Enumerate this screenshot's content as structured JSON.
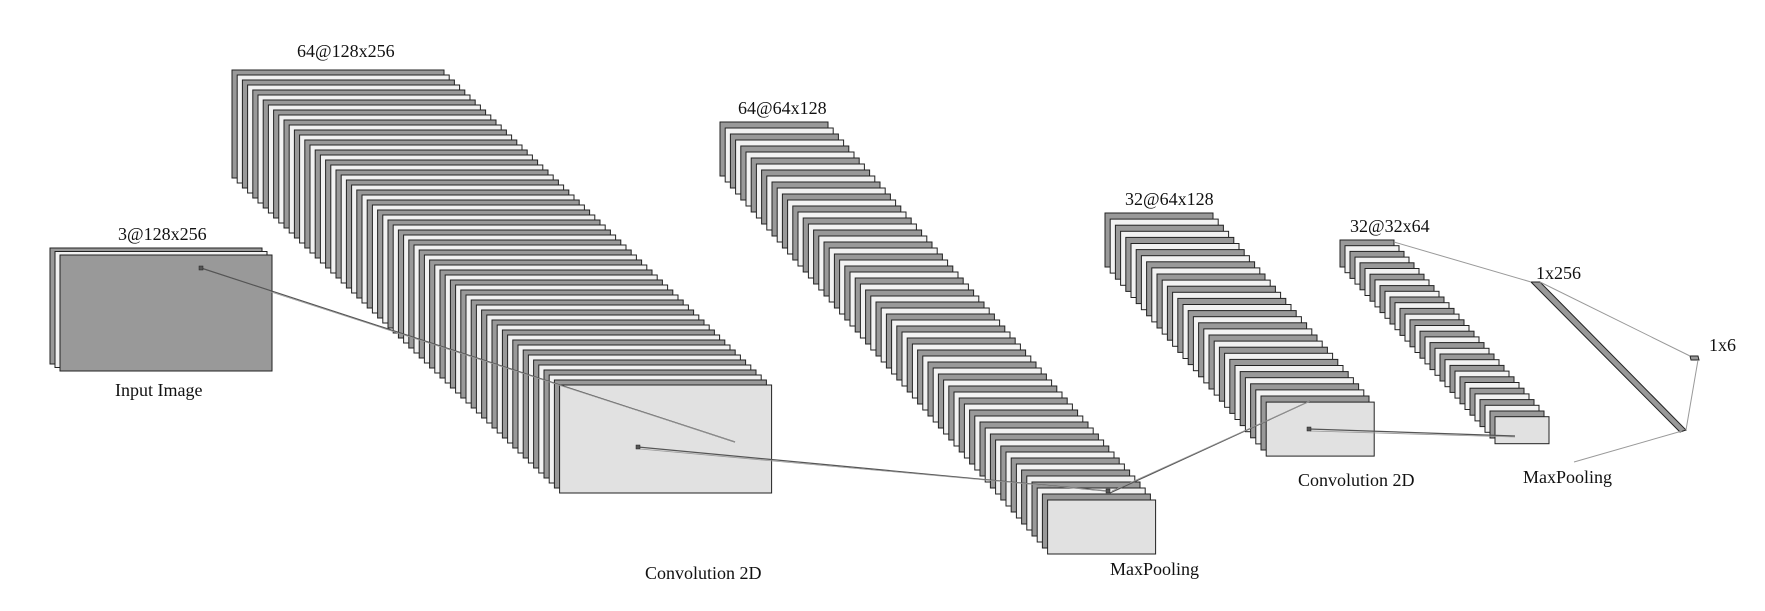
{
  "diagram": {
    "colors": {
      "background": "#ffffff",
      "stroke": "#222222",
      "dark_fill": "#999999",
      "light_fill": "#e1e1e1",
      "connector": "#555555",
      "connector_light": "#999999"
    },
    "stages": {
      "input": {
        "dims": "3@128x256",
        "caption": "Input Image"
      },
      "conv1": {
        "dims": "64@128x256",
        "caption": "Convolution 2D"
      },
      "pool1": {
        "dims": "64@64x128",
        "caption": "MaxPooling"
      },
      "conv2": {
        "dims": "32@64x128",
        "caption": "Convolution 2D"
      },
      "pool2": {
        "dims": "32@32x64",
        "caption": "MaxPooling"
      },
      "dense": {
        "dims": "1x256"
      },
      "output": {
        "dims": "1x6"
      }
    }
  }
}
